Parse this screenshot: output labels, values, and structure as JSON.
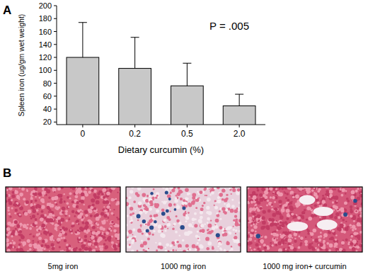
{
  "chart_data": {
    "type": "bar",
    "panel_label": "A",
    "annotation": "P = .005",
    "x_label": "Dietary curcumin (%)",
    "y_label": "Spleen iron (ug/gm wet weight)",
    "categories": [
      "0",
      "0.2",
      "0.5",
      "2.0"
    ],
    "values": [
      120,
      103,
      76,
      45
    ],
    "errors": [
      54,
      48,
      35,
      18
    ],
    "color": "#c8c8c8",
    "ylim": [
      16,
      200
    ],
    "yticks": [
      20,
      40,
      60,
      80,
      100,
      120,
      140,
      160,
      180,
      200
    ],
    "grid": false
  },
  "micrographs": {
    "panel_label": "B",
    "items": [
      {
        "caption": "5mg iron"
      },
      {
        "caption": "1000 mg iron"
      },
      {
        "caption": "1000 mg iron+ curcumin"
      }
    ]
  }
}
